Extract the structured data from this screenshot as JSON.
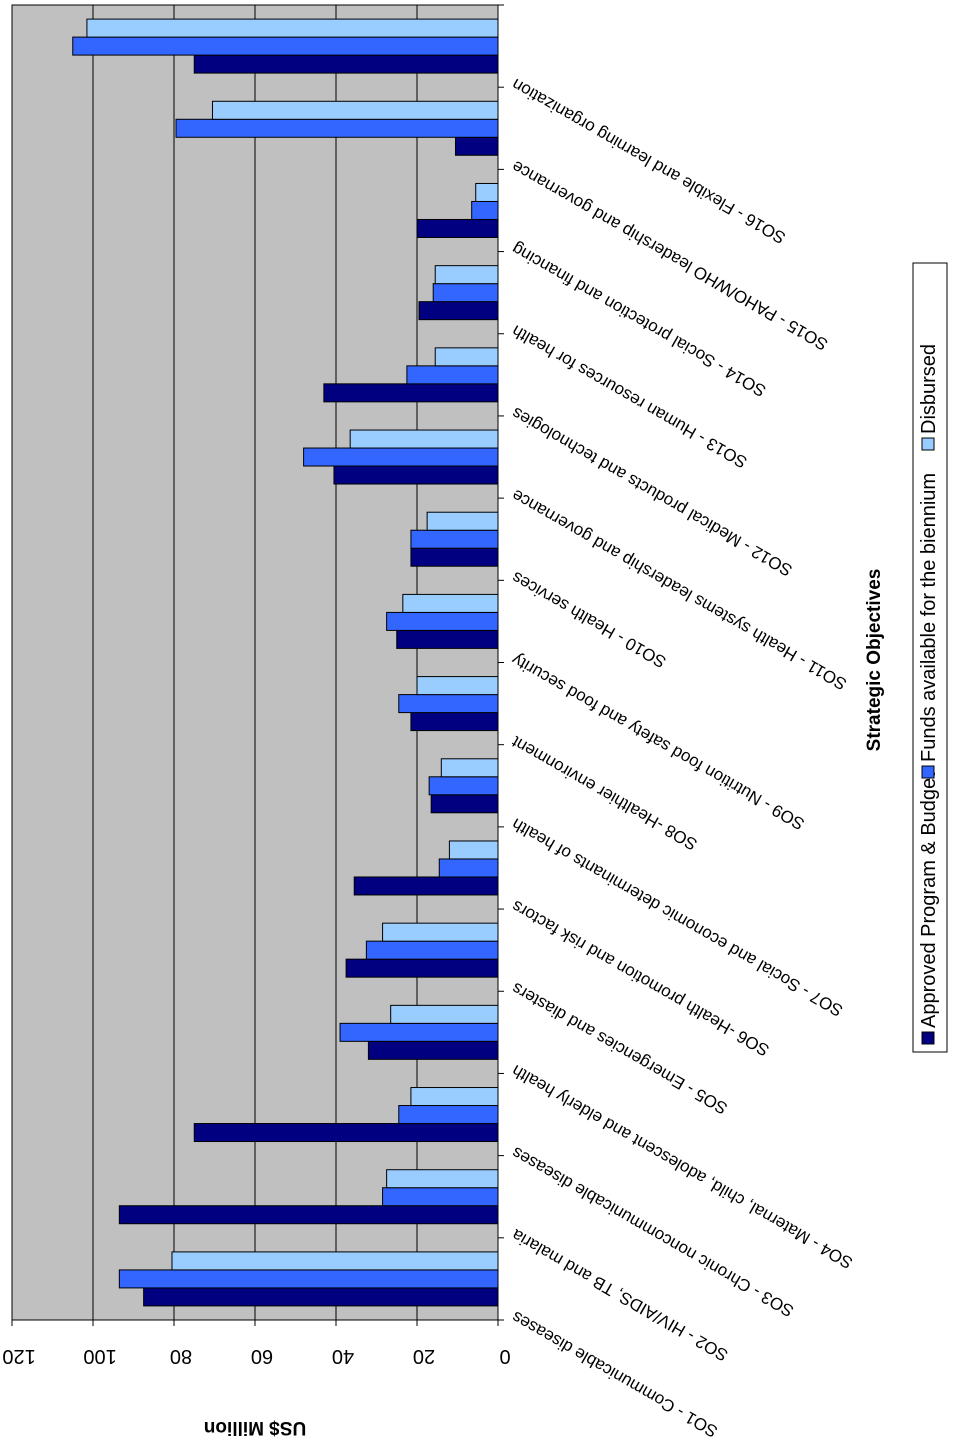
{
  "chart_data": {
    "type": "bar",
    "orientation": "rotated-180",
    "categories": [
      "SO1 - Communicable diseases",
      "SO2 - HIV/AIDS, TB and malaria",
      "SO3 - Chronic noncommunicable diseases",
      "SO4 - Maternal, child, adolescent and elderly health",
      "SO5 - Emergencies and diasters",
      "SO6 -Health promotion and risk factors",
      "SO7 - Social and economic determinants of health",
      "SO8 -Healthier environment",
      "SO9 - Nutrition food safety and food security",
      "SO10 - Health services",
      "SO11 - Health systems leadership and governance",
      "SO12 - Medical products and technologies",
      "SO13 - Human resources for health",
      "SO14 - Social protection and financing",
      "SO15 - PAHO/WHO leadership and governance",
      "SO16 - Flexible and learning organization"
    ],
    "series": [
      {
        "name": "Approved Program & Budget",
        "color": "#000080",
        "values": [
          87.5,
          93.5,
          75,
          32,
          37.5,
          35.5,
          16.5,
          21.5,
          25,
          21.5,
          40.5,
          43,
          19.5,
          20,
          10.5,
          75
        ]
      },
      {
        "name": "Funds available for the biennium",
        "color": "#3366ff",
        "values": [
          93.5,
          28.5,
          24.5,
          39,
          32.5,
          14.5,
          17,
          24.5,
          27.5,
          21.5,
          48,
          22.5,
          16,
          6.5,
          79.5,
          105
        ]
      },
      {
        "name": "Disbursed",
        "color": "#99ccff",
        "values": [
          80.5,
          27.5,
          21.5,
          26.5,
          28.5,
          12,
          14,
          20,
          23.5,
          17.5,
          36.5,
          15.5,
          15.5,
          5.5,
          70.5,
          101.5
        ]
      }
    ],
    "ylabel": "US$ Million",
    "xlabel": "Strategic Objectives",
    "ylim": [
      0,
      120
    ],
    "yticks": [
      "0",
      "20",
      "40",
      "60",
      "80",
      "100",
      "120"
    ],
    "grid": true,
    "legend_position": "bottom"
  },
  "colors": {
    "plot_background": "#c0c0c0",
    "gridline": "#000000"
  }
}
